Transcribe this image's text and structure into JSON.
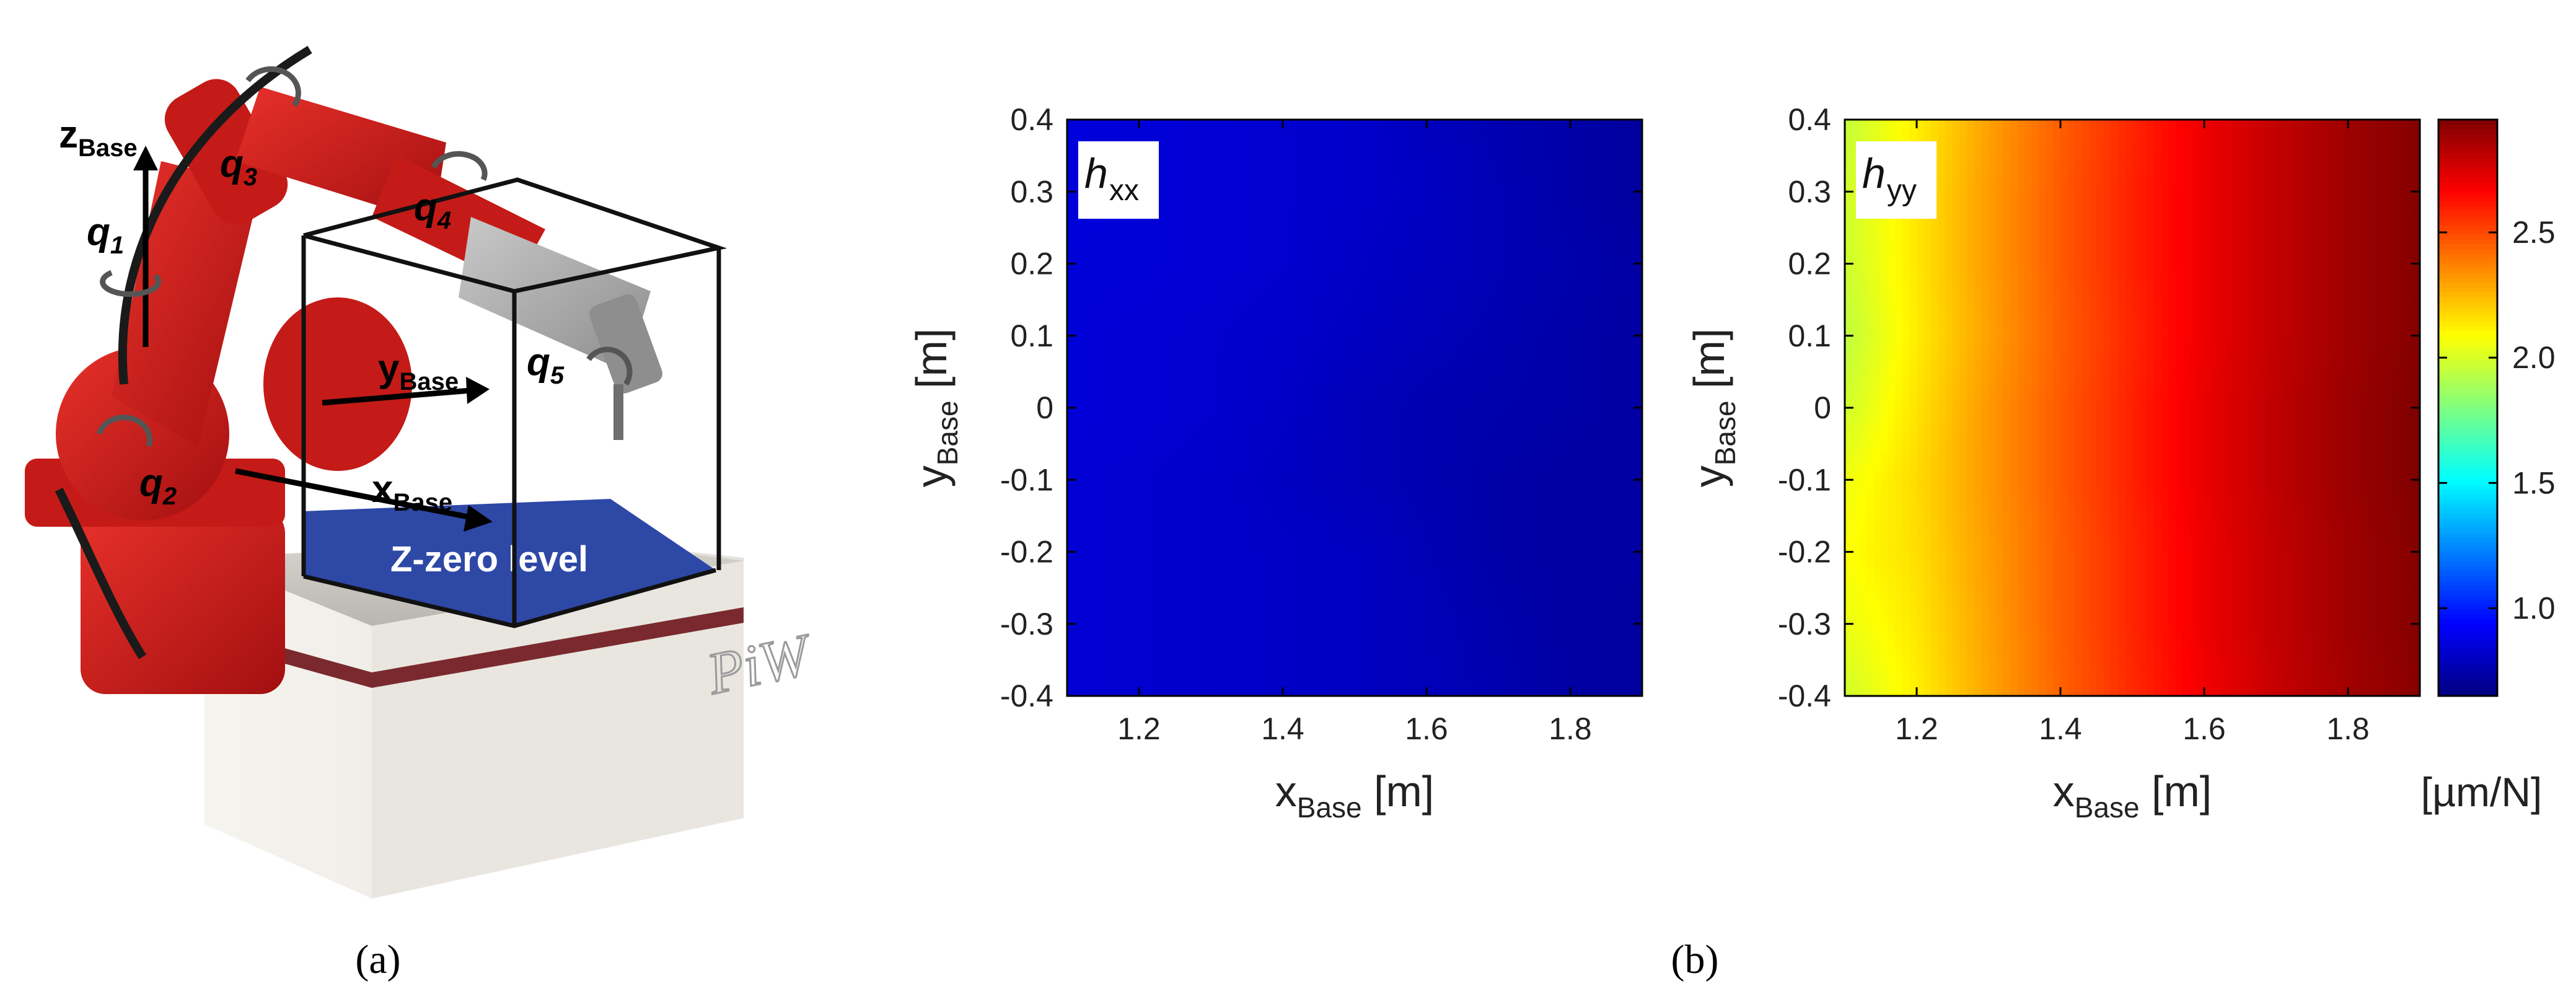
{
  "figure": {
    "panel_a_caption": "(a)",
    "panel_b_caption": "(b)",
    "panel_a": {
      "labels": {
        "z_main": "z",
        "z_sub": "Base",
        "y_main": "y",
        "y_sub": "Base",
        "x_main": "x",
        "x_sub": "Base",
        "q1_main": "q",
        "q1_sub": "1",
        "q2_main": "q",
        "q2_sub": "2",
        "q3_main": "q",
        "q3_sub": "3",
        "q4_main": "q",
        "q4_sub": "4",
        "q5_main": "q",
        "q5_sub": "5",
        "zero_level": "Z-zero level",
        "table_logo": "PiW"
      },
      "colors": {
        "robot": "#d21a1a",
        "zero_plane": "#2e48a6",
        "table": "#f1efea",
        "table_stripe": "#7a2a2e"
      }
    }
  },
  "chart_data": [
    {
      "type": "heatmap",
      "panel_label": "h",
      "panel_label_sub": "xx",
      "xlabel": "x",
      "xlabel_sub": "Base",
      "xlabel_unit": "[m]",
      "ylabel": "y",
      "ylabel_sub": "Base",
      "ylabel_unit": "[m]",
      "xlim": [
        1.1,
        1.9
      ],
      "ylim": [
        -0.4,
        0.4
      ],
      "xticks": [
        1.2,
        1.4,
        1.6,
        1.8
      ],
      "yticks": [
        0.4,
        0.3,
        0.2,
        0.1,
        0,
        -0.1,
        -0.2,
        -0.3,
        -0.4
      ],
      "xtick_labels": [
        "1.2",
        "1.4",
        "1.6",
        "1.8"
      ],
      "ytick_labels": [
        "0.4",
        "0.3",
        "0.2",
        "0.1",
        "0",
        "-0.1",
        "-0.2",
        "-0.3",
        "-0.4"
      ],
      "x": [
        1.1,
        1.2,
        1.3,
        1.4,
        1.5,
        1.6,
        1.7,
        1.8,
        1.9
      ],
      "y": [
        0.4,
        0.3,
        0.2,
        0.1,
        0,
        -0.1,
        -0.2,
        -0.3,
        -0.4
      ],
      "z": [
        [
          0.86,
          0.85,
          0.84,
          0.83,
          0.82,
          0.79,
          0.76,
          0.74,
          0.72
        ],
        [
          0.86,
          0.85,
          0.84,
          0.83,
          0.82,
          0.8,
          0.77,
          0.74,
          0.72
        ],
        [
          0.85,
          0.85,
          0.84,
          0.83,
          0.81,
          0.79,
          0.77,
          0.75,
          0.73
        ],
        [
          0.85,
          0.84,
          0.83,
          0.82,
          0.8,
          0.78,
          0.76,
          0.74,
          0.73
        ],
        [
          0.85,
          0.84,
          0.83,
          0.81,
          0.78,
          0.76,
          0.75,
          0.74,
          0.73
        ],
        [
          0.84,
          0.83,
          0.82,
          0.8,
          0.78,
          0.76,
          0.74,
          0.73,
          0.73
        ],
        [
          0.84,
          0.83,
          0.82,
          0.81,
          0.8,
          0.77,
          0.74,
          0.73,
          0.73
        ],
        [
          0.84,
          0.83,
          0.82,
          0.81,
          0.8,
          0.78,
          0.75,
          0.73,
          0.72
        ],
        [
          0.84,
          0.83,
          0.82,
          0.81,
          0.8,
          0.78,
          0.76,
          0.73,
          0.72
        ]
      ]
    },
    {
      "type": "heatmap",
      "panel_label": "h",
      "panel_label_sub": "yy",
      "xlabel": "x",
      "xlabel_sub": "Base",
      "xlabel_unit": "[m]",
      "ylabel": "y",
      "ylabel_sub": "Base",
      "ylabel_unit": "[m]",
      "xlim": [
        1.1,
        1.9
      ],
      "ylim": [
        -0.4,
        0.4
      ],
      "xticks": [
        1.2,
        1.4,
        1.6,
        1.8
      ],
      "yticks": [
        0.4,
        0.3,
        0.2,
        0.1,
        0,
        -0.1,
        -0.2,
        -0.3,
        -0.4
      ],
      "xtick_labels": [
        "1.2",
        "1.4",
        "1.6",
        "1.8"
      ],
      "ytick_labels": [
        "0.4",
        "0.3",
        "0.2",
        "0.1",
        "0",
        "-0.1",
        "-0.2",
        "-0.3",
        "-0.4"
      ],
      "x": [
        1.1,
        1.2,
        1.3,
        1.4,
        1.5,
        1.6,
        1.7,
        1.8,
        1.9
      ],
      "y": [
        0.4,
        0.3,
        0.2,
        0.1,
        0,
        -0.1,
        -0.2,
        -0.3,
        -0.4
      ],
      "z": [
        [
          1.95,
          2.12,
          2.3,
          2.45,
          2.58,
          2.7,
          2.8,
          2.88,
          2.94
        ],
        [
          1.98,
          2.14,
          2.31,
          2.46,
          2.59,
          2.7,
          2.8,
          2.88,
          2.94
        ],
        [
          1.97,
          2.14,
          2.31,
          2.46,
          2.59,
          2.7,
          2.8,
          2.88,
          2.94
        ],
        [
          1.94,
          2.13,
          2.3,
          2.45,
          2.58,
          2.7,
          2.8,
          2.88,
          2.94
        ],
        [
          1.98,
          2.15,
          2.32,
          2.46,
          2.59,
          2.71,
          2.81,
          2.89,
          2.95
        ],
        [
          2.05,
          2.17,
          2.32,
          2.46,
          2.59,
          2.71,
          2.81,
          2.89,
          2.95
        ],
        [
          2.08,
          2.16,
          2.31,
          2.45,
          2.58,
          2.7,
          2.8,
          2.88,
          2.94
        ],
        [
          2.04,
          2.14,
          2.3,
          2.45,
          2.58,
          2.7,
          2.8,
          2.88,
          2.94
        ],
        [
          1.98,
          2.12,
          2.29,
          2.44,
          2.57,
          2.69,
          2.79,
          2.87,
          2.93
        ]
      ],
      "colorbar": {
        "colormap": "jet",
        "clim": [
          0.65,
          2.95
        ],
        "ticks": [
          1.0,
          1.5,
          2.0,
          2.5
        ],
        "tick_labels": [
          "1.0",
          "1.5",
          "2.0",
          "2.5"
        ],
        "unit_label": "[µm/N]"
      }
    }
  ]
}
